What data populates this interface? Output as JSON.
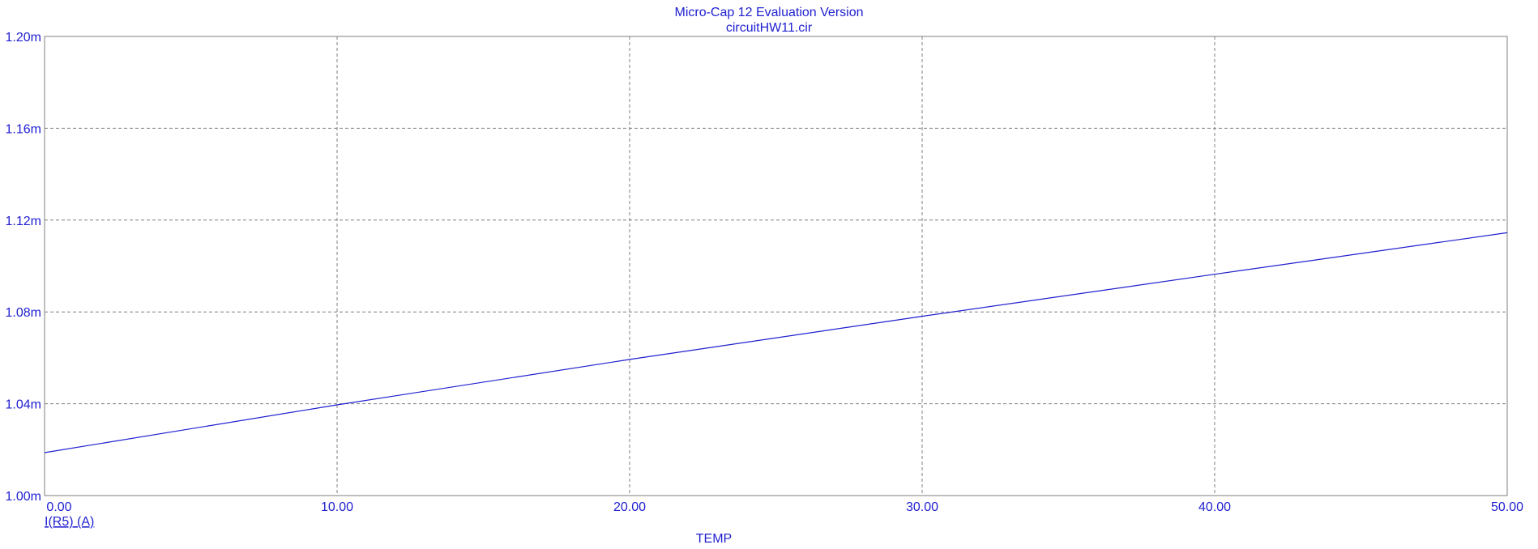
{
  "window": {
    "title": "Micro-Cap 12 Evaluation Version",
    "subtitle": "circuitHW11.cir"
  },
  "colors": {
    "text": "#1f1fd0",
    "trace": "#1f1fd0",
    "grid": "#7f7f7f",
    "frame": "#7f7f7f",
    "background": "#ffffff"
  },
  "chart_data": {
    "type": "line",
    "title": "Micro-Cap 12 Evaluation Version",
    "subtitle": "circuitHW11.cir",
    "xlabel": "TEMP",
    "ylabel": "I(R5) (A)",
    "xlim": [
      0,
      50
    ],
    "ylim": [
      1.0,
      1.2
    ],
    "y_unit_scale": "milli",
    "grid": true,
    "x_ticks": [
      0,
      10,
      20,
      30,
      40,
      50
    ],
    "x_tick_labels": [
      "0.00",
      "10.00",
      "20.00",
      "30.00",
      "40.00",
      "50.00"
    ],
    "y_ticks": [
      1.0,
      1.04,
      1.08,
      1.12,
      1.16,
      1.2
    ],
    "y_tick_labels": [
      "1.00m",
      "1.04m",
      "1.08m",
      "1.12m",
      "1.16m",
      "1.20m"
    ],
    "series": [
      {
        "name": "I(R5) (A)",
        "x": [
          0,
          10,
          20,
          30,
          40,
          50
        ],
        "y": [
          1.0187,
          1.0395,
          1.0593,
          1.0781,
          1.0964,
          1.1145
        ]
      }
    ]
  }
}
